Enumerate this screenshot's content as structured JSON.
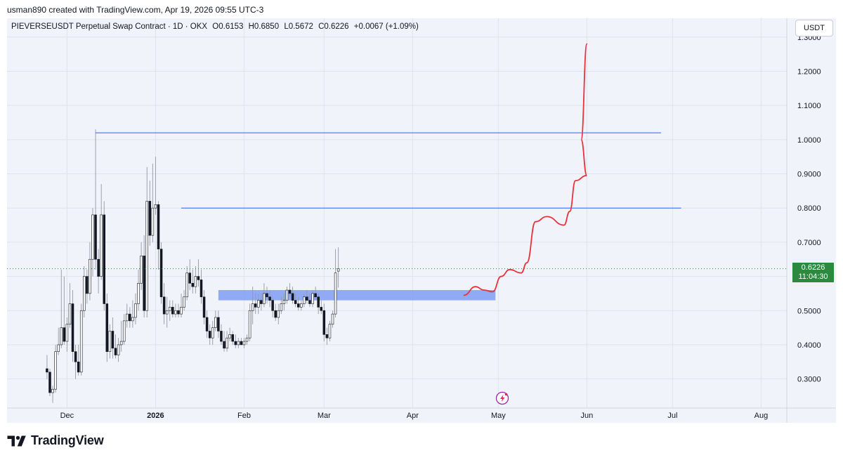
{
  "header": {
    "attribution": "usman890 created with TradingView.com, Apr 19, 2026 09:55 UTC-3"
  },
  "legend": {
    "symbol": "PIEVERSEUSDT Perpetual Swap Contract · 1D · OKX",
    "open": "O0.6153",
    "high": "H0.6850",
    "low": "L0.5672",
    "close": "C0.6226",
    "change": "+0.0067 (+1.09%)"
  },
  "currency_button": "USDT",
  "price_badge": {
    "price": "0.6226",
    "countdown": "11:04:30"
  },
  "brand": {
    "name": "TradingView",
    "logo_icon": "tradingview-logo-icon"
  },
  "colors": {
    "bull": "#ffffff",
    "bear": "#131722",
    "wick": "#9598a1",
    "resistance_line": "#2962ff",
    "zone": "#7f9cf5",
    "projection": "#e8323c",
    "badge": "#2b8a3e",
    "grid": "#e0e3eb",
    "background": "#f0f3fa"
  },
  "chart_data": {
    "type": "candlestick",
    "title": "PIEVERSEUSDT Perpetual Swap Contract · 1D · OKX",
    "x_tick_labels": [
      "Dec",
      "2026",
      "Feb",
      "Mar",
      "Apr",
      "May",
      "Jun",
      "Jul",
      "Aug"
    ],
    "y_tick_labels": [
      "1.3000",
      "1.2000",
      "1.1000",
      "1.0000",
      "0.9000",
      "0.8000",
      "0.7000",
      "0.6000",
      "0.5000",
      "0.4000",
      "0.3000"
    ],
    "y_range": [
      0.215,
      1.355
    ],
    "x_range": [
      "2025-11-10",
      "2026-08-10"
    ],
    "grid": true,
    "last_price": 0.6226,
    "first_candle_date": "2025-11-24",
    "candles": [
      [
        0.33,
        0.37,
        0.3,
        0.32
      ],
      [
        0.32,
        0.33,
        0.25,
        0.26
      ],
      [
        0.26,
        0.28,
        0.23,
        0.27
      ],
      [
        0.27,
        0.4,
        0.26,
        0.38
      ],
      [
        0.38,
        0.45,
        0.37,
        0.4
      ],
      [
        0.4,
        0.62,
        0.39,
        0.45
      ],
      [
        0.45,
        0.6,
        0.4,
        0.41
      ],
      [
        0.41,
        0.48,
        0.38,
        0.46
      ],
      [
        0.46,
        0.58,
        0.45,
        0.52
      ],
      [
        0.52,
        0.56,
        0.35,
        0.38
      ],
      [
        0.38,
        0.4,
        0.3,
        0.35
      ],
      [
        0.35,
        0.4,
        0.31,
        0.32
      ],
      [
        0.32,
        0.52,
        0.31,
        0.5
      ],
      [
        0.5,
        0.63,
        0.48,
        0.6
      ],
      [
        0.6,
        0.62,
        0.52,
        0.55
      ],
      [
        0.55,
        0.7,
        0.53,
        0.65
      ],
      [
        0.65,
        0.8,
        0.6,
        0.78
      ],
      [
        0.78,
        1.03,
        0.62,
        0.65
      ],
      [
        0.65,
        0.68,
        0.55,
        0.6
      ],
      [
        0.6,
        0.87,
        0.59,
        0.78
      ],
      [
        0.78,
        0.82,
        0.5,
        0.52
      ],
      [
        0.52,
        0.55,
        0.35,
        0.38
      ],
      [
        0.38,
        0.46,
        0.36,
        0.44
      ],
      [
        0.44,
        0.48,
        0.36,
        0.39
      ],
      [
        0.39,
        0.43,
        0.36,
        0.37
      ],
      [
        0.37,
        0.42,
        0.35,
        0.4
      ],
      [
        0.4,
        0.47,
        0.38,
        0.41
      ],
      [
        0.41,
        0.49,
        0.4,
        0.47
      ],
      [
        0.47,
        0.52,
        0.45,
        0.49
      ],
      [
        0.49,
        0.51,
        0.45,
        0.47
      ],
      [
        0.47,
        0.53,
        0.45,
        0.48
      ],
      [
        0.48,
        0.55,
        0.46,
        0.52
      ],
      [
        0.52,
        0.62,
        0.5,
        0.58
      ],
      [
        0.58,
        0.7,
        0.56,
        0.66
      ],
      [
        0.66,
        0.72,
        0.48,
        0.5
      ],
      [
        0.5,
        0.92,
        0.48,
        0.82
      ],
      [
        0.82,
        0.88,
        0.69,
        0.72
      ],
      [
        0.72,
        0.93,
        0.7,
        0.8
      ],
      [
        0.8,
        0.95,
        0.78,
        0.81
      ],
      [
        0.81,
        0.82,
        0.62,
        0.68
      ],
      [
        0.68,
        0.7,
        0.52,
        0.54
      ],
      [
        0.54,
        0.58,
        0.46,
        0.49
      ],
      [
        0.49,
        0.54,
        0.45,
        0.5
      ],
      [
        0.5,
        0.53,
        0.47,
        0.51
      ],
      [
        0.51,
        0.53,
        0.48,
        0.49
      ],
      [
        0.49,
        0.52,
        0.48,
        0.5
      ],
      [
        0.5,
        0.52,
        0.48,
        0.49
      ],
      [
        0.49,
        0.55,
        0.48,
        0.51
      ],
      [
        0.51,
        0.56,
        0.5,
        0.54
      ],
      [
        0.54,
        0.63,
        0.53,
        0.61
      ],
      [
        0.61,
        0.65,
        0.56,
        0.58
      ],
      [
        0.58,
        0.62,
        0.55,
        0.57
      ],
      [
        0.57,
        0.63,
        0.55,
        0.6
      ],
      [
        0.6,
        0.65,
        0.57,
        0.59
      ],
      [
        0.59,
        0.62,
        0.52,
        0.54
      ],
      [
        0.54,
        0.56,
        0.46,
        0.48
      ],
      [
        0.48,
        0.5,
        0.42,
        0.44
      ],
      [
        0.44,
        0.46,
        0.4,
        0.42
      ],
      [
        0.42,
        0.47,
        0.4,
        0.45
      ],
      [
        0.45,
        0.5,
        0.44,
        0.48
      ],
      [
        0.48,
        0.5,
        0.42,
        0.44
      ],
      [
        0.44,
        0.46,
        0.4,
        0.41
      ],
      [
        0.41,
        0.44,
        0.38,
        0.39
      ],
      [
        0.39,
        0.44,
        0.38,
        0.42
      ],
      [
        0.42,
        0.45,
        0.41,
        0.43
      ],
      [
        0.43,
        0.44,
        0.4,
        0.41
      ],
      [
        0.41,
        0.43,
        0.39,
        0.4
      ],
      [
        0.4,
        0.42,
        0.39,
        0.41
      ],
      [
        0.41,
        0.42,
        0.4,
        0.4
      ],
      [
        0.4,
        0.42,
        0.39,
        0.41
      ],
      [
        0.41,
        0.43,
        0.4,
        0.42
      ],
      [
        0.42,
        0.52,
        0.41,
        0.5
      ],
      [
        0.5,
        0.57,
        0.46,
        0.52
      ],
      [
        0.52,
        0.55,
        0.49,
        0.51
      ],
      [
        0.51,
        0.55,
        0.49,
        0.53
      ],
      [
        0.53,
        0.55,
        0.5,
        0.52
      ],
      [
        0.52,
        0.58,
        0.51,
        0.55
      ],
      [
        0.55,
        0.57,
        0.52,
        0.54
      ],
      [
        0.54,
        0.56,
        0.51,
        0.53
      ],
      [
        0.53,
        0.54,
        0.48,
        0.5
      ],
      [
        0.5,
        0.52,
        0.47,
        0.48
      ],
      [
        0.48,
        0.52,
        0.46,
        0.5
      ],
      [
        0.5,
        0.54,
        0.49,
        0.52
      ],
      [
        0.52,
        0.55,
        0.5,
        0.53
      ],
      [
        0.53,
        0.57,
        0.52,
        0.56
      ],
      [
        0.56,
        0.58,
        0.54,
        0.55
      ],
      [
        0.55,
        0.57,
        0.52,
        0.53
      ],
      [
        0.53,
        0.55,
        0.51,
        0.52
      ],
      [
        0.52,
        0.54,
        0.5,
        0.51
      ],
      [
        0.51,
        0.53,
        0.5,
        0.52
      ],
      [
        0.52,
        0.55,
        0.51,
        0.54
      ],
      [
        0.54,
        0.56,
        0.52,
        0.53
      ],
      [
        0.53,
        0.55,
        0.51,
        0.52
      ],
      [
        0.52,
        0.56,
        0.51,
        0.55
      ],
      [
        0.55,
        0.57,
        0.53,
        0.54
      ],
      [
        0.54,
        0.55,
        0.49,
        0.51
      ],
      [
        0.51,
        0.53,
        0.49,
        0.5
      ],
      [
        0.5,
        0.52,
        0.41,
        0.43
      ],
      [
        0.43,
        0.45,
        0.4,
        0.42
      ],
      [
        0.42,
        0.47,
        0.41,
        0.46
      ],
      [
        0.46,
        0.5,
        0.45,
        0.49
      ],
      [
        0.49,
        0.68,
        0.48,
        0.61
      ],
      [
        0.6153,
        0.685,
        0.5672,
        0.6226
      ]
    ],
    "resistance_lines": [
      {
        "price": 1.02,
        "from": "2025-12-11",
        "to": "2026-06-27"
      },
      {
        "price": 0.8,
        "from": "2026-01-10",
        "to": "2026-07-04"
      }
    ],
    "zone": {
      "top": 0.56,
      "bottom": 0.53,
      "from": "2026-01-23",
      "to": "2026-04-30"
    },
    "projection_path": [
      [
        "2026-04-19",
        0.545
      ],
      [
        "2026-04-23",
        0.57
      ],
      [
        "2026-04-26",
        0.56
      ],
      [
        "2026-04-29",
        0.555
      ],
      [
        "2026-05-02",
        0.6
      ],
      [
        "2026-05-05",
        0.62
      ],
      [
        "2026-05-09",
        0.61
      ],
      [
        "2026-05-11",
        0.64
      ],
      [
        "2026-05-14",
        0.76
      ],
      [
        "2026-05-18",
        0.775
      ],
      [
        "2026-05-24",
        0.75
      ],
      [
        "2026-05-26",
        0.79
      ],
      [
        "2026-05-28",
        0.88
      ],
      [
        "2026-06-01",
        0.895
      ],
      [
        "2026-05-30",
        1.0
      ],
      [
        "2026-06-01",
        1.28
      ]
    ]
  }
}
